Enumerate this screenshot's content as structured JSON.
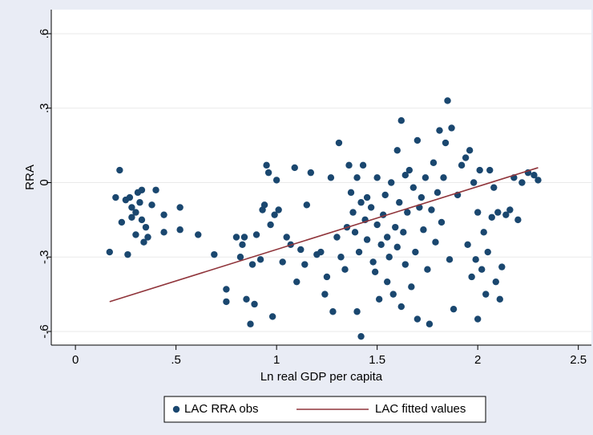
{
  "chart_data": {
    "type": "scatter",
    "x_label": "Ln real GDP per capita",
    "y_label": "RRA",
    "xlim": [
      -0.12,
      2.565
    ],
    "ylim": [
      -0.655,
      0.697
    ],
    "xticks": [
      0,
      {
        "value": 0.5,
        "label": ".5"
      },
      1,
      1.5,
      2,
      2.5
    ],
    "yticks": [
      {
        "value": -0.6,
        "label": "-.6"
      },
      {
        "value": -0.3,
        "label": "-.3"
      },
      0,
      {
        "value": 0.3,
        "label": ".3"
      },
      {
        "value": 0.6,
        "label": ".6"
      }
    ],
    "grid": true,
    "legend": "bottom",
    "series": [
      {
        "name": "LAC RRA obs",
        "type": "scatter",
        "color": "#1a476f",
        "x": [
          0.17,
          0.2,
          0.22,
          0.23,
          0.25,
          0.26,
          0.27,
          0.28,
          0.28,
          0.3,
          0.3,
          0.31,
          0.32,
          0.33,
          0.33,
          0.34,
          0.35,
          0.36,
          0.38,
          0.4,
          0.44,
          0.44,
          0.52,
          0.52,
          0.61,
          0.69,
          0.75,
          0.75,
          0.8,
          0.82,
          0.83,
          0.84,
          0.85,
          0.87,
          0.88,
          0.89,
          0.9,
          0.92,
          0.93,
          0.94,
          0.95,
          0.96,
          0.97,
          0.98,
          0.99,
          1.0,
          1.01,
          1.03,
          1.05,
          1.07,
          1.09,
          1.1,
          1.12,
          1.14,
          1.15,
          1.17,
          1.2,
          1.22,
          1.24,
          1.25,
          1.27,
          1.28,
          1.3,
          1.31,
          1.32,
          1.34,
          1.35,
          1.36,
          1.37,
          1.38,
          1.39,
          1.4,
          1.4,
          1.41,
          1.42,
          1.42,
          1.43,
          1.44,
          1.45,
          1.45,
          1.47,
          1.48,
          1.49,
          1.5,
          1.5,
          1.51,
          1.52,
          1.53,
          1.54,
          1.55,
          1.55,
          1.56,
          1.57,
          1.58,
          1.59,
          1.6,
          1.6,
          1.61,
          1.62,
          1.62,
          1.63,
          1.64,
          1.64,
          1.65,
          1.66,
          1.67,
          1.68,
          1.69,
          1.7,
          1.7,
          1.71,
          1.72,
          1.73,
          1.74,
          1.75,
          1.76,
          1.77,
          1.78,
          1.79,
          1.8,
          1.81,
          1.82,
          1.83,
          1.84,
          1.85,
          1.86,
          1.87,
          1.88,
          1.9,
          1.92,
          1.94,
          1.95,
          1.96,
          1.97,
          1.98,
          1.99,
          2.0,
          2.0,
          2.01,
          2.02,
          2.03,
          2.04,
          2.05,
          2.06,
          2.07,
          2.08,
          2.09,
          2.1,
          2.11,
          2.12,
          2.14,
          2.16,
          2.18,
          2.2,
          2.22,
          2.25,
          2.28,
          2.3
        ],
        "values": [
          -0.28,
          -0.06,
          0.05,
          -0.16,
          -0.07,
          -0.29,
          -0.06,
          -0.1,
          -0.14,
          -0.21,
          -0.12,
          -0.04,
          -0.08,
          -0.03,
          -0.15,
          -0.24,
          -0.18,
          -0.22,
          -0.09,
          -0.03,
          -0.13,
          -0.2,
          -0.1,
          -0.19,
          -0.21,
          -0.29,
          -0.43,
          -0.48,
          -0.22,
          -0.3,
          -0.25,
          -0.22,
          -0.47,
          -0.57,
          -0.33,
          -0.49,
          -0.21,
          -0.31,
          -0.11,
          -0.09,
          0.07,
          0.04,
          -0.17,
          -0.54,
          -0.13,
          0.01,
          -0.11,
          -0.32,
          -0.22,
          -0.25,
          0.06,
          -0.4,
          -0.27,
          -0.33,
          -0.09,
          0.04,
          -0.29,
          -0.28,
          -0.45,
          -0.38,
          0.02,
          -0.52,
          -0.22,
          0.16,
          -0.3,
          -0.35,
          -0.18,
          0.07,
          -0.04,
          -0.12,
          -0.2,
          0.02,
          -0.52,
          -0.28,
          -0.62,
          -0.08,
          0.07,
          -0.15,
          -0.23,
          -0.06,
          -0.1,
          -0.32,
          -0.36,
          -0.17,
          0.02,
          -0.47,
          -0.25,
          -0.13,
          -0.05,
          -0.22,
          -0.4,
          -0.3,
          0.0,
          -0.45,
          -0.18,
          0.13,
          -0.26,
          -0.08,
          0.25,
          -0.5,
          -0.2,
          0.03,
          -0.33,
          -0.12,
          0.05,
          -0.42,
          -0.02,
          -0.28,
          0.17,
          -0.55,
          -0.1,
          -0.06,
          -0.19,
          0.02,
          -0.35,
          -0.57,
          -0.11,
          0.08,
          -0.24,
          -0.04,
          0.21,
          -0.16,
          0.02,
          0.16,
          0.33,
          -0.31,
          0.22,
          -0.51,
          -0.05,
          0.07,
          0.1,
          -0.25,
          0.13,
          -0.38,
          0.0,
          -0.31,
          -0.55,
          -0.12,
          0.05,
          -0.35,
          -0.2,
          -0.45,
          -0.28,
          0.05,
          -0.14,
          -0.02,
          -0.4,
          -0.12,
          -0.47,
          -0.34,
          -0.13,
          -0.11,
          0.02,
          -0.15,
          0.0,
          0.04,
          0.03,
          0.01
        ]
      },
      {
        "name": "LAC fitted values",
        "type": "line",
        "color": "#90353b",
        "x": [
          0.17,
          2.3
        ],
        "values": [
          -0.48,
          0.06
        ]
      }
    ]
  }
}
